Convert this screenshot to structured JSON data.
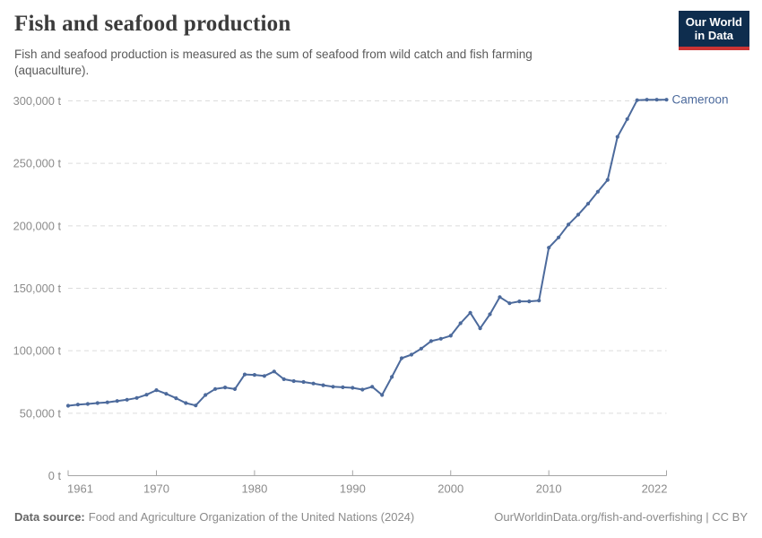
{
  "header": {
    "logo": {
      "line1": "Our World",
      "line2": "in Data",
      "bg_color": "#0E2D4E",
      "accent_color": "#CB3434"
    }
  },
  "chart_data": {
    "type": "line",
    "title": "Fish and seafood production",
    "subtitle": "Fish and seafood production is measured as the sum of seafood from wild catch and fish farming (aquaculture).",
    "series_label": "Cameroon",
    "unit": "t",
    "xlabel": "",
    "ylabel": "",
    "grid": true,
    "legend_position": "end-of-line",
    "line_color": "#4C6A9C",
    "xlim": [
      1961,
      2022
    ],
    "ylim": [
      0,
      300000
    ],
    "xticks": [
      1961,
      1970,
      1980,
      1990,
      2000,
      2010,
      2022
    ],
    "yticks": [
      0,
      50000,
      100000,
      150000,
      200000,
      250000,
      300000
    ],
    "ytick_labels": [
      "0 t",
      "50,000 t",
      "100,000 t",
      "150,000 t",
      "200,000 t",
      "250,000 t",
      "300,000 t"
    ],
    "years": [
      1961,
      1962,
      1963,
      1964,
      1965,
      1966,
      1967,
      1968,
      1969,
      1970,
      1971,
      1972,
      1973,
      1974,
      1975,
      1976,
      1977,
      1978,
      1979,
      1980,
      1981,
      1982,
      1983,
      1984,
      1985,
      1986,
      1987,
      1988,
      1989,
      1990,
      1991,
      1992,
      1993,
      1994,
      1995,
      1996,
      1997,
      1998,
      1999,
      2000,
      2001,
      2002,
      2003,
      2004,
      2005,
      2006,
      2007,
      2008,
      2009,
      2010,
      2011,
      2012,
      2013,
      2014,
      2015,
      2016,
      2017,
      2018,
      2019,
      2020,
      2021,
      2022
    ],
    "values": [
      56000,
      56900,
      57400,
      58100,
      58700,
      59800,
      60800,
      62200,
      64800,
      68500,
      65500,
      62000,
      58100,
      56200,
      64600,
      69400,
      70600,
      69300,
      81000,
      80700,
      79800,
      83400,
      77200,
      75700,
      75000,
      73800,
      72400,
      71200,
      70800,
      70300,
      68900,
      71200,
      64600,
      79000,
      94000,
      96900,
      101700,
      107700,
      109600,
      112000,
      122000,
      130400,
      117900,
      129200,
      143000,
      138000,
      139500,
      139500,
      140200,
      182500,
      190700,
      201000,
      208900,
      217700,
      227300,
      236800,
      271200,
      285400,
      300600,
      300900,
      300900,
      300900
    ]
  },
  "footer": {
    "source_label": "Data source:",
    "source_text": "Food and Agriculture Organization of the United Nations (2024)",
    "link_text": "OurWorldinData.org/fish-and-overfishing | CC BY"
  }
}
